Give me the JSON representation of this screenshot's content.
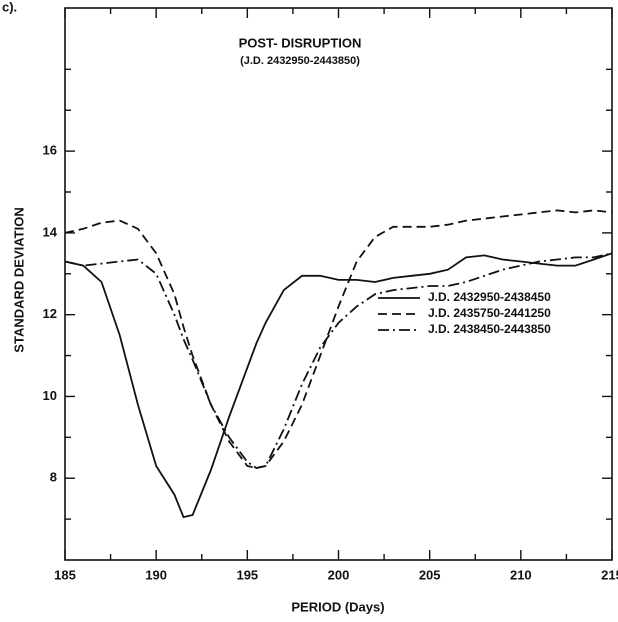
{
  "chart_data": {
    "type": "line",
    "panel_label": "c).",
    "title": "POST- DISRUPTION",
    "subtitle": "(J.D. 2432950-2443850)",
    "x_label": "PERIOD (Days)",
    "y_label": "STANDARD DEVIATION",
    "xlim": [
      185,
      215
    ],
    "xticks": [
      185,
      190,
      195,
      200,
      205,
      210,
      215
    ],
    "xminorticks": [
      187.5,
      192.5,
      197.5,
      202.5,
      207.5,
      212.5
    ],
    "ylim": [
      6,
      19.5
    ],
    "yticks": [
      8,
      10,
      12,
      14,
      16
    ],
    "yminorticks": [
      7,
      9,
      11,
      13,
      15,
      17,
      18
    ],
    "x": [
      185,
      186,
      187,
      188,
      189,
      190,
      191,
      191.5,
      192,
      193,
      194,
      195,
      195.5,
      196,
      197,
      198,
      199,
      200,
      201,
      202,
      203,
      204,
      205,
      206,
      207,
      208,
      209,
      210,
      211,
      212,
      213,
      214,
      215
    ],
    "series": [
      {
        "name": "J.D. 2432950-2438450",
        "color": "#111111",
        "dash": "solid",
        "values": [
          13.3,
          13.2,
          12.8,
          11.5,
          9.8,
          8.3,
          7.6,
          7.05,
          7.1,
          8.2,
          9.5,
          10.7,
          11.3,
          11.8,
          12.6,
          12.95,
          12.95,
          12.85,
          12.85,
          12.8,
          12.9,
          12.95,
          13.0,
          13.1,
          13.4,
          13.45,
          13.35,
          13.3,
          13.25,
          13.2,
          13.2,
          13.35,
          13.5
        ]
      },
      {
        "name": "J.D. 2435750-2441250",
        "color": "#111111",
        "dash": "dashed",
        "values": [
          14.0,
          14.1,
          14.25,
          14.3,
          14.1,
          13.5,
          12.5,
          11.7,
          11.0,
          9.8,
          8.9,
          8.3,
          8.25,
          8.3,
          8.9,
          9.8,
          11.0,
          12.2,
          13.3,
          13.9,
          14.15,
          14.15,
          14.15,
          14.2,
          14.3,
          14.35,
          14.4,
          14.45,
          14.5,
          14.55,
          14.5,
          14.55,
          14.5
        ]
      },
      {
        "name": "J.D. 2438450-2443850",
        "color": "#111111",
        "dash": "dashdot",
        "values": [
          13.3,
          13.2,
          13.25,
          13.3,
          13.35,
          13.0,
          12.0,
          11.4,
          10.9,
          9.8,
          9.0,
          8.4,
          8.25,
          8.3,
          9.2,
          10.3,
          11.2,
          11.8,
          12.2,
          12.5,
          12.6,
          12.65,
          12.7,
          12.7,
          12.8,
          12.95,
          13.1,
          13.2,
          13.3,
          13.35,
          13.4,
          13.4,
          13.5
        ]
      }
    ]
  }
}
